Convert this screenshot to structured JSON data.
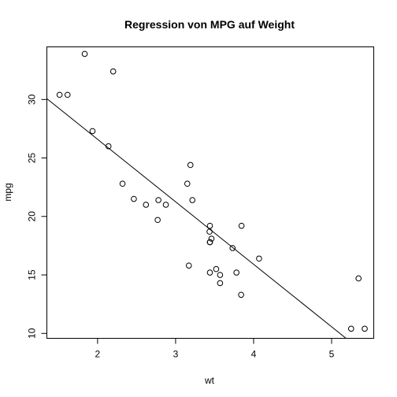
{
  "chart_data": {
    "type": "scatter",
    "title": "Regression von MPG auf Weight",
    "xlabel": "wt",
    "ylabel": "mpg",
    "xlim": [
      1.35,
      5.54
    ],
    "ylim": [
      9.58,
      34.5
    ],
    "xticks": [
      2,
      3,
      4,
      5
    ],
    "yticks": [
      10,
      15,
      20,
      25,
      30
    ],
    "x": [
      1.513,
      1.615,
      1.835,
      1.935,
      2.14,
      2.2,
      2.32,
      2.465,
      2.62,
      2.77,
      2.78,
      2.875,
      3.15,
      3.17,
      3.19,
      3.215,
      3.435,
      3.44,
      3.44,
      3.44,
      3.44,
      3.46,
      3.52,
      3.57,
      3.57,
      3.73,
      3.78,
      3.84,
      3.845,
      4.07,
      5.25,
      5.345,
      5.424
    ],
    "y": [
      30.4,
      30.4,
      33.9,
      27.3,
      26.0,
      32.4,
      22.8,
      21.5,
      21.0,
      19.7,
      21.4,
      21.0,
      22.8,
      15.8,
      24.4,
      21.4,
      18.7,
      19.2,
      17.8,
      15.2,
      17.8,
      18.1,
      15.5,
      15.0,
      14.3,
      17.3,
      15.2,
      13.3,
      19.2,
      16.4,
      10.4,
      14.7,
      10.4
    ],
    "regression": {
      "intercept": 37.285,
      "slope": -5.344
    },
    "grid": false
  }
}
